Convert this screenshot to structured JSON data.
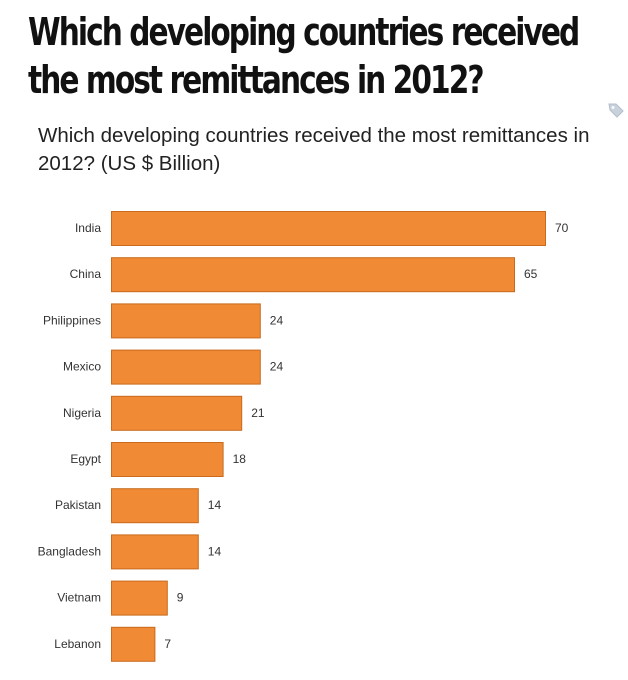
{
  "headline": {
    "line1": "Which developing countries received",
    "line2": "the most remittances in 2012?"
  },
  "icons": {
    "tag": "tag-icon"
  },
  "colors": {
    "bar": "#f08a35",
    "bar_border": "#c96a1c"
  },
  "chart_data": {
    "type": "bar",
    "orientation": "horizontal",
    "title": "Which developing countries received the most remittances in 2012? (US $ Billion)",
    "categories": [
      "India",
      "China",
      "Philippines",
      "Mexico",
      "Nigeria",
      "Egypt",
      "Pakistan",
      "Bangladesh",
      "Vietnam",
      "Lebanon"
    ],
    "values": [
      70,
      65,
      24,
      24,
      21,
      18,
      14,
      14,
      9,
      7
    ],
    "xlabel": "",
    "ylabel": "",
    "grid": false,
    "legend": "none"
  }
}
